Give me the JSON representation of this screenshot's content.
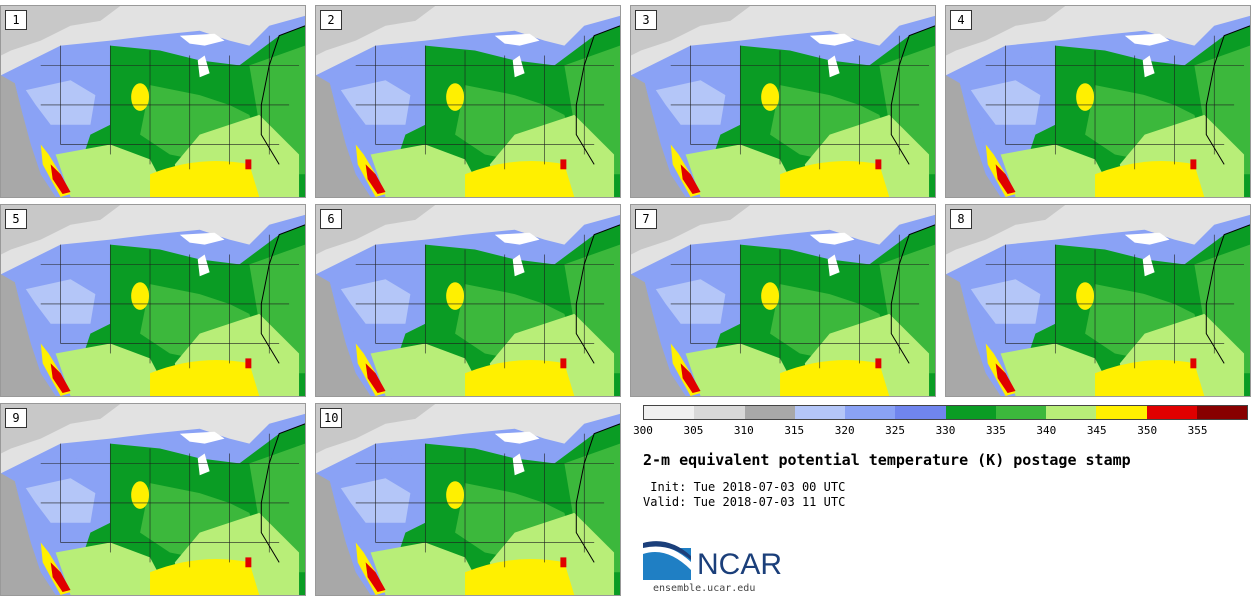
{
  "members": [
    {
      "label": "1"
    },
    {
      "label": "2"
    },
    {
      "label": "3"
    },
    {
      "label": "4"
    },
    {
      "label": "5"
    },
    {
      "label": "6"
    },
    {
      "label": "7"
    },
    {
      "label": "8"
    },
    {
      "label": "9"
    },
    {
      "label": "10"
    }
  ],
  "colorbar": {
    "colors": [
      "#f0f0f0",
      "#d8d8d8",
      "#a8a8a8",
      "#b4c6f8",
      "#8aa2f5",
      "#7085ee",
      "#0a9c24",
      "#3cb83c",
      "#b8ee78",
      "#fff000",
      "#e00000",
      "#880000"
    ],
    "tick_labels": [
      "300",
      "305",
      "310",
      "315",
      "320",
      "325",
      "330",
      "335",
      "340",
      "345",
      "350",
      "355"
    ]
  },
  "title": "2-m equivalent potential temperature (K) postage stamp",
  "init": " Init: Tue 2018-07-03 00 UTC",
  "valid": "Valid: Tue 2018-07-03 11 UTC",
  "logo": {
    "text": "NCAR",
    "url": "ensemble.ucar.edu"
  }
}
